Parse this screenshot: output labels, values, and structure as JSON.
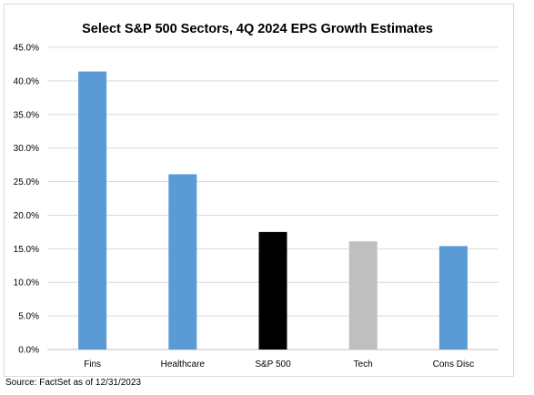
{
  "chart_data": {
    "type": "bar",
    "title": "Select S&P 500 Sectors, 4Q 2024 EPS Growth Estimates",
    "categories": [
      "Fins",
      "Healthcare",
      "S&P 500",
      "Tech",
      "Cons Disc"
    ],
    "values": [
      41.4,
      26.1,
      17.5,
      16.1,
      15.4
    ],
    "bar_colors": [
      "#5b9bd5",
      "#5b9bd5",
      "#000000",
      "#bfbfbf",
      "#5b9bd5"
    ],
    "ylim": [
      0,
      45
    ],
    "yticks": [
      0,
      5,
      10,
      15,
      20,
      25,
      30,
      35,
      40,
      45
    ],
    "ytick_labels": [
      "0.0%",
      "5.0%",
      "10.0%",
      "15.0%",
      "20.0%",
      "25.0%",
      "30.0%",
      "35.0%",
      "40.0%",
      "45.0%"
    ],
    "xlabel": "",
    "ylabel": "",
    "grid": true,
    "legend": "none"
  },
  "source_note": "Source: FactSet as of 12/31/2023"
}
